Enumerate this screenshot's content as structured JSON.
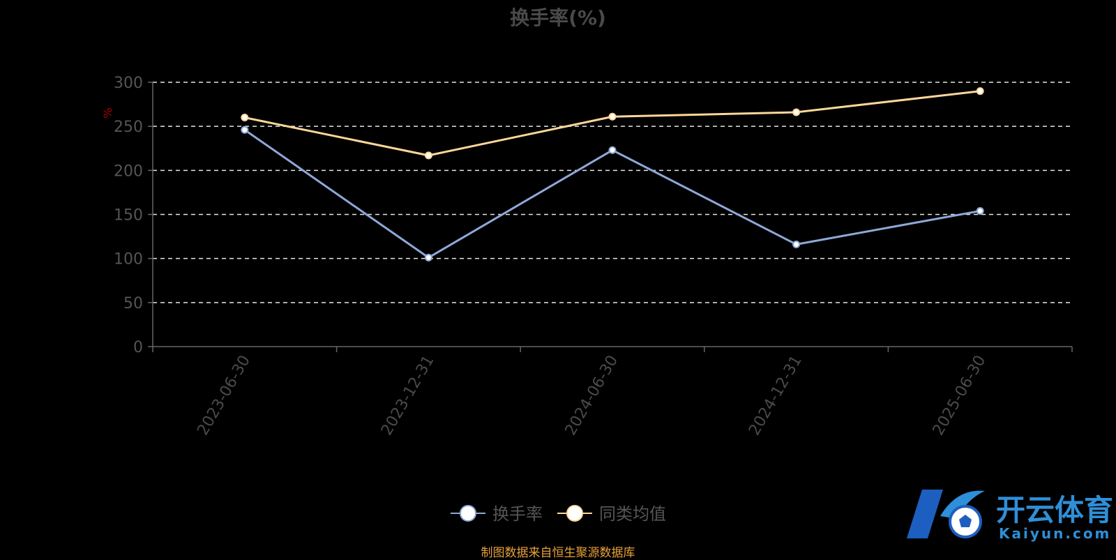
{
  "chart_data": {
    "type": "line",
    "title": "换手率(%)",
    "ylabel": "%",
    "xlabel": "",
    "categories": [
      "2023-06-30",
      "2023-12-31",
      "2024-06-30",
      "2024-12-31",
      "2025-06-30"
    ],
    "y_ticks": [
      "0",
      "50",
      "100",
      "150",
      "200",
      "250",
      "300"
    ],
    "ylim": [
      0,
      300
    ],
    "grid": true,
    "legend_position": "bottom",
    "series": [
      {
        "name": "换手率",
        "color": "#8fa8d8",
        "values": [
          246,
          101,
          223,
          116,
          154
        ]
      },
      {
        "name": "同类均值",
        "color": "#fdd79a",
        "values": [
          260,
          217,
          261,
          266,
          290
        ]
      }
    ]
  },
  "source": "制图数据来自恒生聚源数据库",
  "watermark": {
    "brand_cn": "开云体育",
    "brand_en": "Kaiyun.com",
    "primary_color": "#2f8fd8",
    "accent_color": "#1d5fc0"
  }
}
